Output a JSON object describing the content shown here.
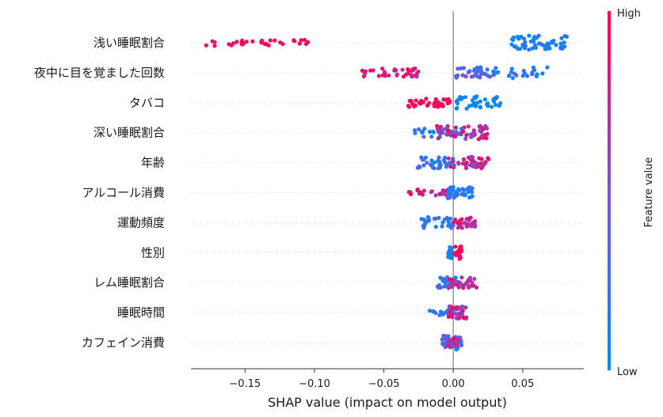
{
  "chart_data": {
    "type": "scatter",
    "subtype": "beeswarm",
    "title": "",
    "xlabel": "SHAP value (impact on model output)",
    "xlim": [
      -0.189,
      0.094
    ],
    "xticks": [
      -0.15,
      -0.1,
      -0.05,
      0.0,
      0.05
    ],
    "xtick_labels": [
      "−0.15",
      "−0.10",
      "−0.05",
      "0.00",
      "0.05"
    ],
    "zero_line": true,
    "grid": false,
    "colorbar": {
      "label": "Feature value",
      "high_label": "High",
      "low_label": "Low",
      "low_color": "#008bfb",
      "mid_color": "#7c52d8",
      "high_color": "#ff0051"
    },
    "features": [
      {
        "name": "浅い睡眠割合",
        "clusters": [
          {
            "min": -0.178,
            "max": -0.1,
            "n": 32,
            "v0": 0.9,
            "v1": 1.0,
            "spread": 0.45
          },
          {
            "min": 0.042,
            "max": 0.082,
            "n": 60,
            "v0": 0.0,
            "v1": 0.2,
            "spread": 1.0
          }
        ]
      },
      {
        "name": "夜中に目を覚ました回数",
        "clusters": [
          {
            "min": -0.069,
            "max": -0.024,
            "n": 36,
            "v0": 0.65,
            "v1": 1.0,
            "spread": 0.6
          },
          {
            "min": 0.002,
            "max": 0.03,
            "n": 26,
            "v0": 0.25,
            "v1": 0.55,
            "spread": 0.7
          },
          {
            "min": 0.008,
            "max": 0.068,
            "n": 32,
            "v0": 0.0,
            "v1": 0.4,
            "spread": 0.8
          }
        ]
      },
      {
        "name": "タバコ",
        "clusters": [
          {
            "min": -0.033,
            "max": -0.002,
            "n": 40,
            "v0": 0.92,
            "v1": 1.0,
            "spread": 0.6
          },
          {
            "min": 0.002,
            "max": 0.034,
            "n": 36,
            "v0": 0.0,
            "v1": 0.1,
            "spread": 0.9
          }
        ]
      },
      {
        "name": "深い睡眠割合",
        "clusters": [
          {
            "min": -0.028,
            "max": 0.008,
            "n": 30,
            "v0": 0.0,
            "v1": 0.4,
            "spread": 0.6
          },
          {
            "min": -0.012,
            "max": 0.025,
            "n": 52,
            "v0": 0.55,
            "v1": 1.0,
            "spread": 1.0
          }
        ]
      },
      {
        "name": "年齢",
        "clusters": [
          {
            "min": -0.026,
            "max": 0.004,
            "n": 36,
            "v0": 0.0,
            "v1": 0.4,
            "spread": 0.8
          },
          {
            "min": -0.004,
            "max": 0.026,
            "n": 38,
            "v0": 0.55,
            "v1": 1.0,
            "spread": 0.8
          }
        ]
      },
      {
        "name": "アルコール消費",
        "clusters": [
          {
            "min": -0.032,
            "max": -0.004,
            "n": 22,
            "v0": 0.6,
            "v1": 1.0,
            "spread": 0.45
          },
          {
            "min": -0.004,
            "max": 0.014,
            "n": 40,
            "v0": 0.0,
            "v1": 0.35,
            "spread": 0.8
          }
        ]
      },
      {
        "name": "運動頻度",
        "clusters": [
          {
            "min": -0.026,
            "max": 0.002,
            "n": 30,
            "v0": 0.0,
            "v1": 0.35,
            "spread": 0.8
          },
          {
            "min": 0.0,
            "max": 0.016,
            "n": 30,
            "v0": 0.55,
            "v1": 0.95,
            "spread": 0.8
          }
        ]
      },
      {
        "name": "性別",
        "clusters": [
          {
            "min": -0.004,
            "max": -0.001,
            "n": 22,
            "v0": 0.0,
            "v1": 0.15,
            "spread": 0.9
          },
          {
            "min": 0.001,
            "max": 0.006,
            "n": 24,
            "v0": 0.9,
            "v1": 1.0,
            "spread": 0.9
          }
        ]
      },
      {
        "name": "レム睡眠割合",
        "clusters": [
          {
            "min": -0.012,
            "max": 0.004,
            "n": 30,
            "v0": 0.0,
            "v1": 0.45,
            "spread": 0.8
          },
          {
            "min": -0.004,
            "max": 0.017,
            "n": 30,
            "v0": 0.55,
            "v1": 1.0,
            "spread": 0.8
          }
        ]
      },
      {
        "name": "睡眠時間",
        "clusters": [
          {
            "min": -0.02,
            "max": 0.0,
            "n": 14,
            "v0": 0.0,
            "v1": 0.3,
            "spread": 0.4
          },
          {
            "min": -0.004,
            "max": 0.01,
            "n": 40,
            "v0": 0.4,
            "v1": 1.0,
            "spread": 0.9
          }
        ]
      },
      {
        "name": "カフェイン消費",
        "clusters": [
          {
            "min": -0.008,
            "max": 0.006,
            "n": 52,
            "v0": 0.0,
            "v1": 0.6,
            "spread": 1.0
          },
          {
            "min": -0.004,
            "max": 0.004,
            "n": 12,
            "v0": 0.6,
            "v1": 1.0,
            "spread": 0.6
          }
        ]
      }
    ]
  }
}
